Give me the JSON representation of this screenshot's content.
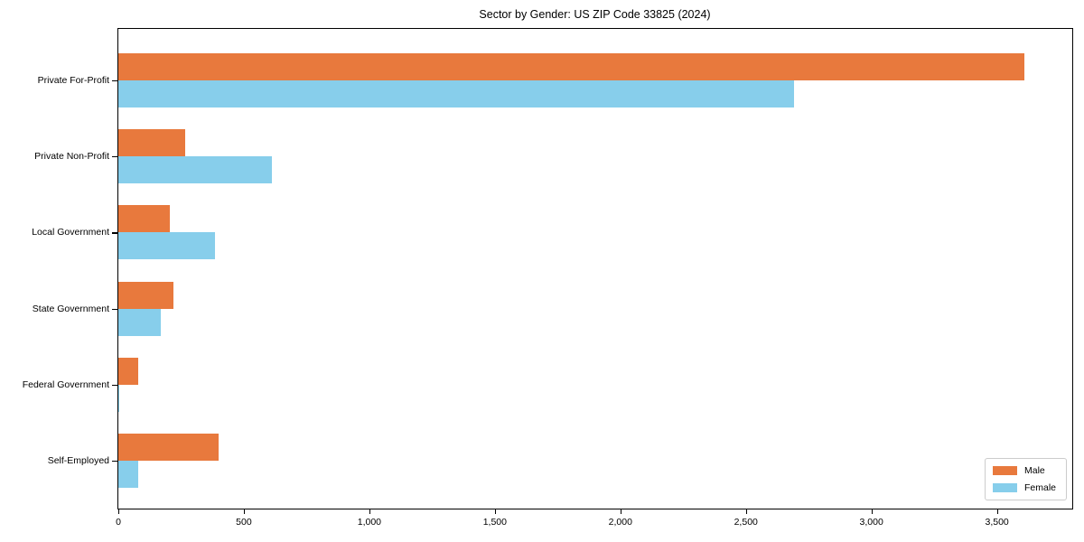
{
  "title": "Sector by Gender: US ZIP Code 33825 (2024)",
  "chart_data": {
    "type": "bar",
    "orientation": "horizontal",
    "title": "Sector by Gender: US ZIP Code 33825 (2024)",
    "categories": [
      "Private For-Profit",
      "Private Non-Profit",
      "Local Government",
      "State Government",
      "Federal Government",
      "Self-Employed"
    ],
    "series": [
      {
        "name": "Male",
        "color": "#E8793D",
        "values": [
          3610,
          265,
          205,
          220,
          78,
          400
        ]
      },
      {
        "name": "Female",
        "color": "#87CEEB",
        "values": [
          2690,
          610,
          385,
          170,
          4,
          80
        ]
      }
    ],
    "xlabel": "",
    "ylabel": "",
    "xlim": [
      0,
      3800
    ],
    "xticks": [
      0,
      500,
      1000,
      1500,
      2000,
      2500,
      3000,
      3500
    ],
    "xtick_labels": [
      "0",
      "500",
      "1,000",
      "1,500",
      "2,000",
      "2,500",
      "3,000",
      "3,500"
    ],
    "grid": false,
    "legend": {
      "position": "lower right"
    }
  }
}
